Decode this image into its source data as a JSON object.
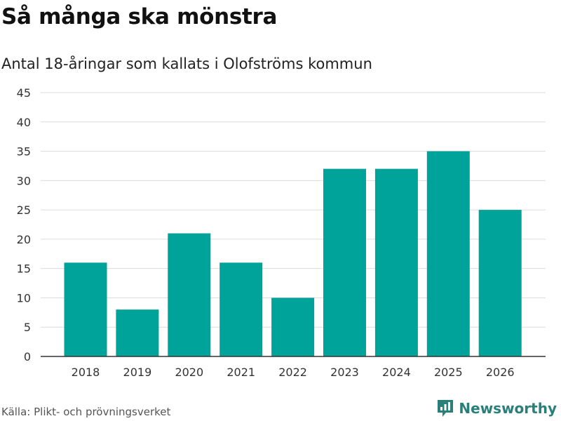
{
  "chart_data": {
    "type": "bar",
    "title": "Så många ska mönstra",
    "subtitle": "Antal 18-åringar som kallats i Olofströms kommun",
    "xlabel": "",
    "ylabel": "",
    "categories": [
      "2018",
      "2019",
      "2020",
      "2021",
      "2022",
      "2023",
      "2024",
      "2025",
      "2026"
    ],
    "values": [
      16,
      8,
      21,
      16,
      10,
      32,
      32,
      35,
      25
    ],
    "ylim": [
      0,
      45
    ],
    "yticks": [
      0,
      5,
      10,
      15,
      20,
      25,
      30,
      35,
      40,
      45
    ],
    "grid": true,
    "bar_color": "#00a39a",
    "source": "Källa: Plikt- och prövningsverket"
  },
  "brand": {
    "name": "Newsworthy",
    "color": "#2a7f7a",
    "icon": "newsworthy-logo-icon"
  }
}
